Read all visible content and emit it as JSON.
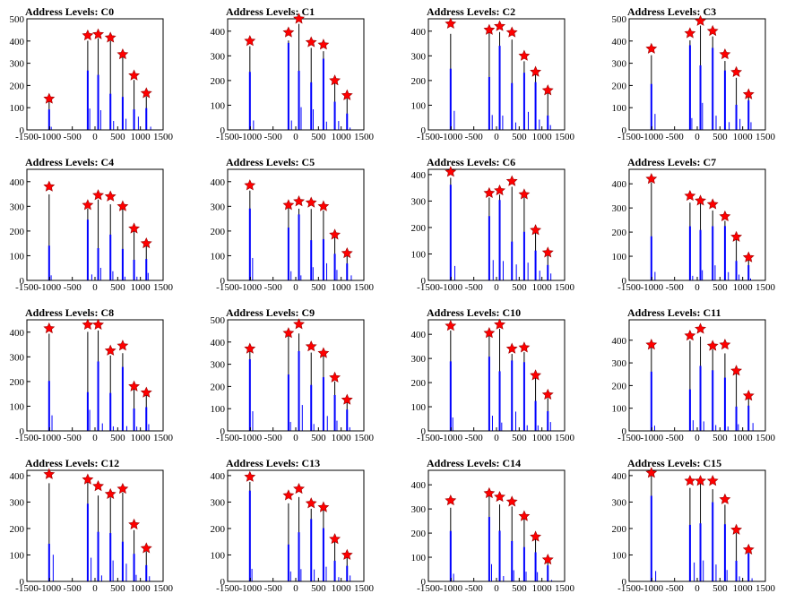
{
  "colors": {
    "histogram_black": "#000000",
    "histogram_blue": "#0000ff",
    "marker_fill": "#ff0000",
    "marker_stroke": "#990000"
  },
  "marker_shape": "red-star",
  "chart_data": [
    {
      "type": "bar",
      "title": "Address Levels: C0",
      "xlim": [
        -1500,
        1500
      ],
      "ylim": [
        0,
        500
      ],
      "xticks": [
        -1500,
        -1000,
        -500,
        0,
        500,
        1000,
        1500
      ],
      "yticks": [
        0,
        100,
        200,
        300,
        400,
        500
      ],
      "peaks": [
        {
          "x": -1010,
          "y": 140
        },
        {
          "x": -160,
          "y": 425
        },
        {
          "x": 70,
          "y": 430
        },
        {
          "x": 340,
          "y": 415
        },
        {
          "x": 610,
          "y": 340
        },
        {
          "x": 860,
          "y": 245
        },
        {
          "x": 1130,
          "y": 165
        }
      ]
    },
    {
      "type": "bar",
      "title": "Address Levels: C1",
      "xlim": [
        -1500,
        1500
      ],
      "ylim": [
        0,
        450
      ],
      "xticks": [
        -1500,
        -1000,
        -500,
        0,
        500,
        1000,
        1500
      ],
      "yticks": [
        0,
        100,
        200,
        300,
        400
      ],
      "peaks": [
        {
          "x": -1010,
          "y": 360
        },
        {
          "x": -160,
          "y": 395
        },
        {
          "x": 70,
          "y": 450
        },
        {
          "x": 340,
          "y": 355
        },
        {
          "x": 610,
          "y": 345
        },
        {
          "x": 860,
          "y": 200
        },
        {
          "x": 1130,
          "y": 140
        }
      ]
    },
    {
      "type": "bar",
      "title": "Address Levels: C2",
      "xlim": [
        -1500,
        1500
      ],
      "ylim": [
        0,
        450
      ],
      "xticks": [
        -1500,
        -1000,
        -500,
        0,
        500,
        1000,
        1500
      ],
      "yticks": [
        0,
        100,
        200,
        300,
        400
      ],
      "peaks": [
        {
          "x": -1010,
          "y": 430
        },
        {
          "x": -160,
          "y": 405
        },
        {
          "x": 70,
          "y": 420
        },
        {
          "x": 340,
          "y": 395
        },
        {
          "x": 610,
          "y": 300
        },
        {
          "x": 860,
          "y": 235
        },
        {
          "x": 1130,
          "y": 160
        }
      ]
    },
    {
      "type": "bar",
      "title": "Address Levels: C3",
      "xlim": [
        -1500,
        1500
      ],
      "ylim": [
        0,
        500
      ],
      "xticks": [
        -1500,
        -1000,
        -500,
        0,
        500,
        1000,
        1500
      ],
      "yticks": [
        0,
        100,
        200,
        300,
        400,
        500
      ],
      "peaks": [
        {
          "x": -1010,
          "y": 365
        },
        {
          "x": -160,
          "y": 435
        },
        {
          "x": 70,
          "y": 490
        },
        {
          "x": 340,
          "y": 445
        },
        {
          "x": 610,
          "y": 340
        },
        {
          "x": 860,
          "y": 260
        },
        {
          "x": 1130,
          "y": 160
        }
      ]
    },
    {
      "type": "bar",
      "title": "Address Levels: C4",
      "xlim": [
        -1500,
        1500
      ],
      "ylim": [
        0,
        450
      ],
      "xticks": [
        -1500,
        -1000,
        -500,
        0,
        500,
        1000,
        1500
      ],
      "yticks": [
        0,
        100,
        200,
        300,
        400
      ],
      "peaks": [
        {
          "x": -1010,
          "y": 380
        },
        {
          "x": -160,
          "y": 305
        },
        {
          "x": 70,
          "y": 345
        },
        {
          "x": 340,
          "y": 340
        },
        {
          "x": 610,
          "y": 300
        },
        {
          "x": 860,
          "y": 210
        },
        {
          "x": 1130,
          "y": 150
        }
      ]
    },
    {
      "type": "bar",
      "title": "Address Levels: C5",
      "xlim": [
        -1500,
        1500
      ],
      "ylim": [
        0,
        450
      ],
      "xticks": [
        -1500,
        -1000,
        -500,
        0,
        500,
        1000,
        1500
      ],
      "yticks": [
        0,
        100,
        200,
        300,
        400
      ],
      "peaks": [
        {
          "x": -1010,
          "y": 385
        },
        {
          "x": -160,
          "y": 305
        },
        {
          "x": 70,
          "y": 320
        },
        {
          "x": 340,
          "y": 315
        },
        {
          "x": 610,
          "y": 300
        },
        {
          "x": 860,
          "y": 185
        },
        {
          "x": 1130,
          "y": 110
        }
      ]
    },
    {
      "type": "bar",
      "title": "Address Levels: C6",
      "xlim": [
        -1500,
        1500
      ],
      "ylim": [
        0,
        420
      ],
      "xticks": [
        -1500,
        -1000,
        -500,
        0,
        500,
        1000,
        1500
      ],
      "yticks": [
        0,
        100,
        200,
        300,
        400
      ],
      "peaks": [
        {
          "x": -1010,
          "y": 410
        },
        {
          "x": -160,
          "y": 330
        },
        {
          "x": 70,
          "y": 340
        },
        {
          "x": 340,
          "y": 375
        },
        {
          "x": 610,
          "y": 325
        },
        {
          "x": 860,
          "y": 190
        },
        {
          "x": 1130,
          "y": 105
        }
      ]
    },
    {
      "type": "bar",
      "title": "Address Levels: C7",
      "xlim": [
        -1500,
        1500
      ],
      "ylim": [
        0,
        460
      ],
      "xticks": [
        -1500,
        -1000,
        -500,
        0,
        500,
        1000,
        1500
      ],
      "yticks": [
        0,
        100,
        200,
        300,
        400
      ],
      "peaks": [
        {
          "x": -1010,
          "y": 420
        },
        {
          "x": -160,
          "y": 350
        },
        {
          "x": 70,
          "y": 330
        },
        {
          "x": 340,
          "y": 315
        },
        {
          "x": 610,
          "y": 265
        },
        {
          "x": 860,
          "y": 180
        },
        {
          "x": 1130,
          "y": 95
        }
      ]
    },
    {
      "type": "bar",
      "title": "Address Levels: C8",
      "xlim": [
        -1500,
        1500
      ],
      "ylim": [
        0,
        450
      ],
      "xticks": [
        -1500,
        -1000,
        -500,
        0,
        500,
        1000,
        1500
      ],
      "yticks": [
        0,
        100,
        200,
        300,
        400
      ],
      "peaks": [
        {
          "x": -1010,
          "y": 415
        },
        {
          "x": -160,
          "y": 430
        },
        {
          "x": 70,
          "y": 430
        },
        {
          "x": 340,
          "y": 325
        },
        {
          "x": 610,
          "y": 345
        },
        {
          "x": 860,
          "y": 180
        },
        {
          "x": 1130,
          "y": 155
        }
      ]
    },
    {
      "type": "bar",
      "title": "Address Levels: C9",
      "xlim": [
        -1500,
        1500
      ],
      "ylim": [
        0,
        500
      ],
      "xticks": [
        -1500,
        -1000,
        -500,
        0,
        500,
        1000,
        1500
      ],
      "yticks": [
        0,
        100,
        200,
        300,
        400,
        500
      ],
      "peaks": [
        {
          "x": -1010,
          "y": 370
        },
        {
          "x": -160,
          "y": 440
        },
        {
          "x": 70,
          "y": 480
        },
        {
          "x": 340,
          "y": 380
        },
        {
          "x": 610,
          "y": 350
        },
        {
          "x": 860,
          "y": 240
        },
        {
          "x": 1130,
          "y": 140
        }
      ]
    },
    {
      "type": "bar",
      "title": "Address Levels: C10",
      "xlim": [
        -1500,
        1500
      ],
      "ylim": [
        0,
        460
      ],
      "xticks": [
        -1500,
        -1000,
        -500,
        0,
        500,
        1000,
        1500
      ],
      "yticks": [
        0,
        100,
        200,
        300,
        400
      ],
      "peaks": [
        {
          "x": -1010,
          "y": 435
        },
        {
          "x": -160,
          "y": 405
        },
        {
          "x": 70,
          "y": 440
        },
        {
          "x": 340,
          "y": 340
        },
        {
          "x": 610,
          "y": 345
        },
        {
          "x": 860,
          "y": 230
        },
        {
          "x": 1130,
          "y": 150
        }
      ]
    },
    {
      "type": "bar",
      "title": "Address Levels: C11",
      "xlim": [
        -1500,
        1500
      ],
      "ylim": [
        0,
        490
      ],
      "xticks": [
        -1500,
        -1000,
        -500,
        0,
        500,
        1000,
        1500
      ],
      "yticks": [
        0,
        100,
        200,
        300,
        400
      ],
      "peaks": [
        {
          "x": -1010,
          "y": 380
        },
        {
          "x": -160,
          "y": 420
        },
        {
          "x": 70,
          "y": 450
        },
        {
          "x": 340,
          "y": 375
        },
        {
          "x": 610,
          "y": 380
        },
        {
          "x": 860,
          "y": 265
        },
        {
          "x": 1130,
          "y": 155
        }
      ]
    },
    {
      "type": "bar",
      "title": "Address Levels: C12",
      "xlim": [
        -1500,
        1500
      ],
      "ylim": [
        0,
        420
      ],
      "xticks": [
        -1500,
        -1000,
        -500,
        0,
        500,
        1000,
        1500
      ],
      "yticks": [
        0,
        100,
        200,
        300,
        400
      ],
      "peaks": [
        {
          "x": -1010,
          "y": 405
        },
        {
          "x": -160,
          "y": 385
        },
        {
          "x": 70,
          "y": 360
        },
        {
          "x": 340,
          "y": 330
        },
        {
          "x": 610,
          "y": 350
        },
        {
          "x": 860,
          "y": 215
        },
        {
          "x": 1130,
          "y": 125
        }
      ]
    },
    {
      "type": "bar",
      "title": "Address Levels: C13",
      "xlim": [
        -1500,
        1500
      ],
      "ylim": [
        0,
        420
      ],
      "xticks": [
        -1500,
        -1000,
        -500,
        0,
        500,
        1000,
        1500
      ],
      "yticks": [
        0,
        100,
        200,
        300,
        400
      ],
      "peaks": [
        {
          "x": -1010,
          "y": 395
        },
        {
          "x": -160,
          "y": 325
        },
        {
          "x": 70,
          "y": 350
        },
        {
          "x": 340,
          "y": 295
        },
        {
          "x": 610,
          "y": 280
        },
        {
          "x": 860,
          "y": 160
        },
        {
          "x": 1130,
          "y": 100
        }
      ]
    },
    {
      "type": "bar",
      "title": "Address Levels: C14",
      "xlim": [
        -1500,
        1500
      ],
      "ylim": [
        0,
        460
      ],
      "xticks": [
        -1500,
        -1000,
        -500,
        0,
        500,
        1000,
        1500
      ],
      "yticks": [
        0,
        100,
        200,
        300,
        400
      ],
      "peaks": [
        {
          "x": -1010,
          "y": 335
        },
        {
          "x": -160,
          "y": 365
        },
        {
          "x": 70,
          "y": 350
        },
        {
          "x": 340,
          "y": 330
        },
        {
          "x": 610,
          "y": 270
        },
        {
          "x": 860,
          "y": 185
        },
        {
          "x": 1130,
          "y": 90
        }
      ]
    },
    {
      "type": "bar",
      "title": "Address Levels: C15",
      "xlim": [
        -1500,
        1500
      ],
      "ylim": [
        0,
        420
      ],
      "xticks": [
        -1500,
        -1000,
        -500,
        0,
        500,
        1000,
        1500
      ],
      "yticks": [
        0,
        100,
        200,
        300,
        400
      ],
      "peaks": [
        {
          "x": -1010,
          "y": 410
        },
        {
          "x": -160,
          "y": 380
        },
        {
          "x": 70,
          "y": 380
        },
        {
          "x": 340,
          "y": 380
        },
        {
          "x": 610,
          "y": 310
        },
        {
          "x": 860,
          "y": 195
        },
        {
          "x": 1130,
          "y": 120
        }
      ]
    }
  ]
}
